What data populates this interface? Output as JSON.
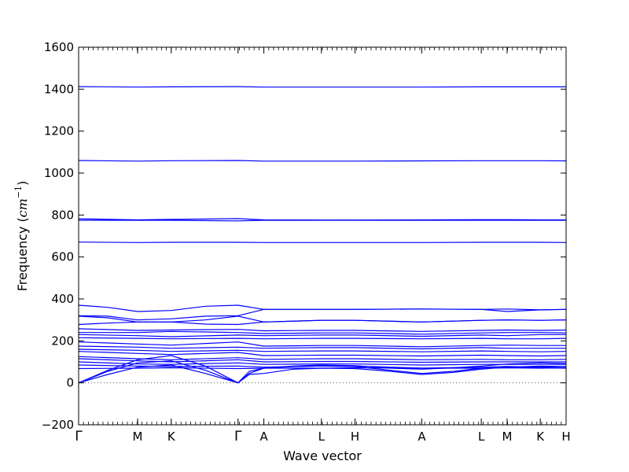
{
  "chart_data": {
    "type": "line",
    "title": "",
    "xlabel": "Wave vector",
    "ylabel": "Frequency ($cm^{-1}$)",
    "ylabel_text": "Frequency (",
    "ylabel_unit": "cm",
    "ylabel_exp": "−1",
    "ylabel_close": ")",
    "ylim": [
      -200,
      1600
    ],
    "yticks": [
      -200,
      0,
      200,
      400,
      600,
      800,
      1000,
      1200,
      1400,
      1600
    ],
    "ytick_labels": [
      "−200",
      "0",
      "200",
      "400",
      "600",
      "800",
      "1000",
      "1200",
      "1400",
      "1600"
    ],
    "xlim": [
      0,
      1
    ],
    "high_symmetry_points": [
      {
        "label": "Γ",
        "x": 0.0
      },
      {
        "label": "M",
        "x": 0.121
      },
      {
        "label": "K",
        "x": 0.19
      },
      {
        "label": "Γ",
        "x": 0.327
      },
      {
        "label": "A",
        "x": 0.38
      },
      {
        "label": "L",
        "x": 0.498
      },
      {
        "label": "H",
        "x": 0.567
      },
      {
        "label": "A",
        "x": 0.704
      },
      {
        "label": "L",
        "x": 0.826
      },
      {
        "label": "M",
        "x": 0.879
      },
      {
        "label": "K",
        "x": 0.947
      },
      {
        "label": "H",
        "x": 1.0
      }
    ],
    "reference_line": {
      "y": 0,
      "style": "dotted"
    },
    "series_color": "#0000ff",
    "grid": false,
    "series": [
      {
        "x": [
          0,
          0.121,
          0.19,
          0.327,
          0.38,
          0.498,
          0.567,
          0.704,
          0.826,
          0.879,
          0.947,
          1.0
        ],
        "values": [
          1412,
          1410,
          1411,
          1412,
          1410,
          1410,
          1410,
          1410,
          1411,
          1411,
          1411,
          1411
        ]
      },
      {
        "x": [
          0,
          0.121,
          0.19,
          0.327,
          0.38,
          0.498,
          0.567,
          0.704,
          0.826,
          0.879,
          0.947,
          1.0
        ],
        "values": [
          1060,
          1057,
          1059,
          1060,
          1057,
          1057,
          1057,
          1058,
          1059,
          1059,
          1059,
          1058
        ]
      },
      {
        "x": [
          0,
          0.121,
          0.19,
          0.327,
          0.38,
          0.498,
          0.567,
          0.704,
          0.826,
          0.879,
          0.947,
          1.0
        ],
        "values": [
          782,
          777,
          779,
          783,
          777,
          776,
          776,
          777,
          778,
          778,
          777,
          777
        ]
      },
      {
        "x": [
          0,
          0.121,
          0.19,
          0.327,
          0.38,
          0.498,
          0.567,
          0.704,
          0.826,
          0.879,
          0.947,
          1.0
        ],
        "values": [
          775,
          775,
          775,
          772,
          775,
          775,
          775,
          775,
          775,
          775,
          775,
          775
        ]
      },
      {
        "x": [
          0,
          0.121,
          0.19,
          0.327,
          0.38,
          0.498,
          0.567,
          0.704,
          0.826,
          0.879,
          0.947,
          1.0
        ],
        "values": [
          671,
          669,
          670,
          670,
          669,
          669,
          669,
          669,
          670,
          670,
          670,
          669
        ]
      },
      {
        "x": [
          0,
          0.06,
          0.121,
          0.19,
          0.26,
          0.327,
          0.38,
          0.498,
          0.567,
          0.704,
          0.826,
          0.879,
          0.947,
          1.0
        ],
        "values": [
          370,
          360,
          340,
          345,
          365,
          370,
          350,
          350,
          350,
          352,
          350,
          352,
          348,
          350
        ]
      },
      {
        "x": [
          0,
          0.06,
          0.121,
          0.19,
          0.26,
          0.327,
          0.38,
          0.498,
          0.567,
          0.704,
          0.826,
          0.879,
          0.947,
          1.0
        ],
        "values": [
          320,
          318,
          300,
          305,
          318,
          320,
          350,
          350,
          350,
          352,
          350,
          340,
          348,
          350
        ]
      },
      {
        "x": [
          0,
          0.06,
          0.121,
          0.19,
          0.26,
          0.327,
          0.38,
          0.498,
          0.567,
          0.704,
          0.826,
          0.879,
          0.947,
          1.0
        ],
        "values": [
          318,
          310,
          290,
          290,
          300,
          318,
          290,
          298,
          298,
          290,
          298,
          300,
          298,
          300
        ]
      },
      {
        "x": [
          0,
          0.06,
          0.121,
          0.19,
          0.26,
          0.327,
          0.38,
          0.498,
          0.567,
          0.704,
          0.826,
          0.879,
          0.947,
          1.0
        ],
        "values": [
          278,
          285,
          290,
          290,
          280,
          278,
          290,
          298,
          298,
          290,
          298,
          300,
          298,
          300
        ]
      },
      {
        "x": [
          0,
          0.121,
          0.19,
          0.327,
          0.38,
          0.498,
          0.567,
          0.704,
          0.826,
          0.879,
          0.947,
          1.0
        ],
        "values": [
          258,
          250,
          252,
          255,
          248,
          250,
          250,
          245,
          250,
          252,
          250,
          252
        ]
      },
      {
        "x": [
          0,
          0.121,
          0.19,
          0.327,
          0.38,
          0.498,
          0.567,
          0.704,
          0.826,
          0.879,
          0.947,
          1.0
        ],
        "values": [
          240,
          240,
          245,
          240,
          235,
          238,
          238,
          232,
          238,
          240,
          240,
          238
        ]
      },
      {
        "x": [
          0,
          0.121,
          0.19,
          0.327,
          0.38,
          0.498,
          0.567,
          0.704,
          0.826,
          0.879,
          0.947,
          1.0
        ],
        "values": [
          230,
          225,
          220,
          228,
          225,
          228,
          228,
          222,
          228,
          225,
          230,
          230
        ]
      },
      {
        "x": [
          0,
          0.121,
          0.19,
          0.327,
          0.38,
          0.498,
          0.567,
          0.704,
          0.826,
          0.879,
          0.947,
          1.0
        ],
        "values": [
          215,
          212,
          210,
          212,
          210,
          212,
          212,
          210,
          212,
          210,
          210,
          212
        ]
      },
      {
        "x": [
          0,
          0.121,
          0.19,
          0.327,
          0.38,
          0.498,
          0.567,
          0.704,
          0.826,
          0.879,
          0.947,
          1.0
        ],
        "values": [
          195,
          185,
          180,
          195,
          175,
          178,
          178,
          172,
          178,
          180,
          178,
          178
        ]
      },
      {
        "x": [
          0,
          0.121,
          0.19,
          0.327,
          0.38,
          0.498,
          0.567,
          0.704,
          0.826,
          0.879,
          0.947,
          1.0
        ],
        "values": [
          175,
          170,
          165,
          170,
          165,
          168,
          168,
          162,
          168,
          165,
          165,
          165
        ]
      },
      {
        "x": [
          0,
          0.121,
          0.19,
          0.327,
          0.38,
          0.498,
          0.567,
          0.704,
          0.826,
          0.879,
          0.947,
          1.0
        ],
        "values": [
          160,
          155,
          150,
          155,
          150,
          152,
          152,
          148,
          152,
          150,
          148,
          150
        ]
      },
      {
        "x": [
          0,
          0.121,
          0.19,
          0.327,
          0.38,
          0.498,
          0.567,
          0.704,
          0.826,
          0.879,
          0.947,
          1.0
        ],
        "values": [
          150,
          140,
          135,
          145,
          130,
          132,
          132,
          128,
          132,
          130,
          128,
          130
        ]
      },
      {
        "x": [
          0,
          0.121,
          0.19,
          0.327,
          0.38,
          0.498,
          0.567,
          0.704,
          0.826,
          0.879,
          0.947,
          1.0
        ],
        "values": [
          125,
          115,
          110,
          120,
          112,
          115,
          115,
          110,
          112,
          110,
          110,
          112
        ]
      },
      {
        "x": [
          0,
          0.121,
          0.19,
          0.327,
          0.38,
          0.498,
          0.567,
          0.704,
          0.826,
          0.879,
          0.947,
          1.0
        ],
        "values": [
          115,
          105,
          100,
          110,
          100,
          102,
          102,
          98,
          100,
          100,
          100,
          100
        ]
      },
      {
        "x": [
          0,
          0.121,
          0.19,
          0.327,
          0.38,
          0.498,
          0.567,
          0.704,
          0.826,
          0.879,
          0.947,
          1.0
        ],
        "values": [
          100,
          90,
          88,
          95,
          88,
          90,
          90,
          85,
          88,
          88,
          88,
          88
        ]
      },
      {
        "x": [
          0,
          0.121,
          0.19,
          0.327,
          0.38,
          0.498,
          0.567,
          0.704,
          0.826,
          0.879,
          0.947,
          1.0
        ],
        "values": [
          85,
          80,
          78,
          80,
          75,
          80,
          80,
          70,
          75,
          78,
          75,
          78
        ]
      },
      {
        "x": [
          0,
          0.121,
          0.19,
          0.327,
          0.38,
          0.498,
          0.567,
          0.704,
          0.826,
          0.879,
          0.947,
          1.0
        ],
        "values": [
          68,
          70,
          72,
          68,
          70,
          70,
          72,
          70,
          70,
          72,
          70,
          72
        ]
      },
      {
        "x": [
          0,
          0.06,
          0.121,
          0.19,
          0.26,
          0.327,
          0.35,
          0.38,
          0.44,
          0.498,
          0.567,
          0.64,
          0.704,
          0.77,
          0.826,
          0.879,
          0.947,
          1.0
        ],
        "values": [
          0,
          40,
          75,
          85,
          45,
          0,
          45,
          70,
          78,
          80,
          78,
          60,
          45,
          55,
          70,
          72,
          72,
          70
        ]
      },
      {
        "x": [
          0,
          0.06,
          0.121,
          0.19,
          0.26,
          0.327,
          0.35,
          0.38,
          0.44,
          0.498,
          0.567,
          0.64,
          0.704,
          0.77,
          0.826,
          0.879,
          0.947,
          1.0
        ],
        "values": [
          0,
          55,
          95,
          105,
          60,
          0,
          40,
          45,
          65,
          70,
          68,
          55,
          40,
          50,
          65,
          75,
          80,
          78
        ]
      },
      {
        "x": [
          0,
          0.06,
          0.121,
          0.19,
          0.26,
          0.327,
          0.35,
          0.38,
          0.44,
          0.498,
          0.567,
          0.64,
          0.704,
          0.77,
          0.826,
          0.879,
          0.947,
          1.0
        ],
        "values": [
          0,
          60,
          110,
          130,
          80,
          0,
          55,
          70,
          80,
          85,
          82,
          70,
          65,
          72,
          80,
          90,
          95,
          92
        ]
      }
    ]
  }
}
